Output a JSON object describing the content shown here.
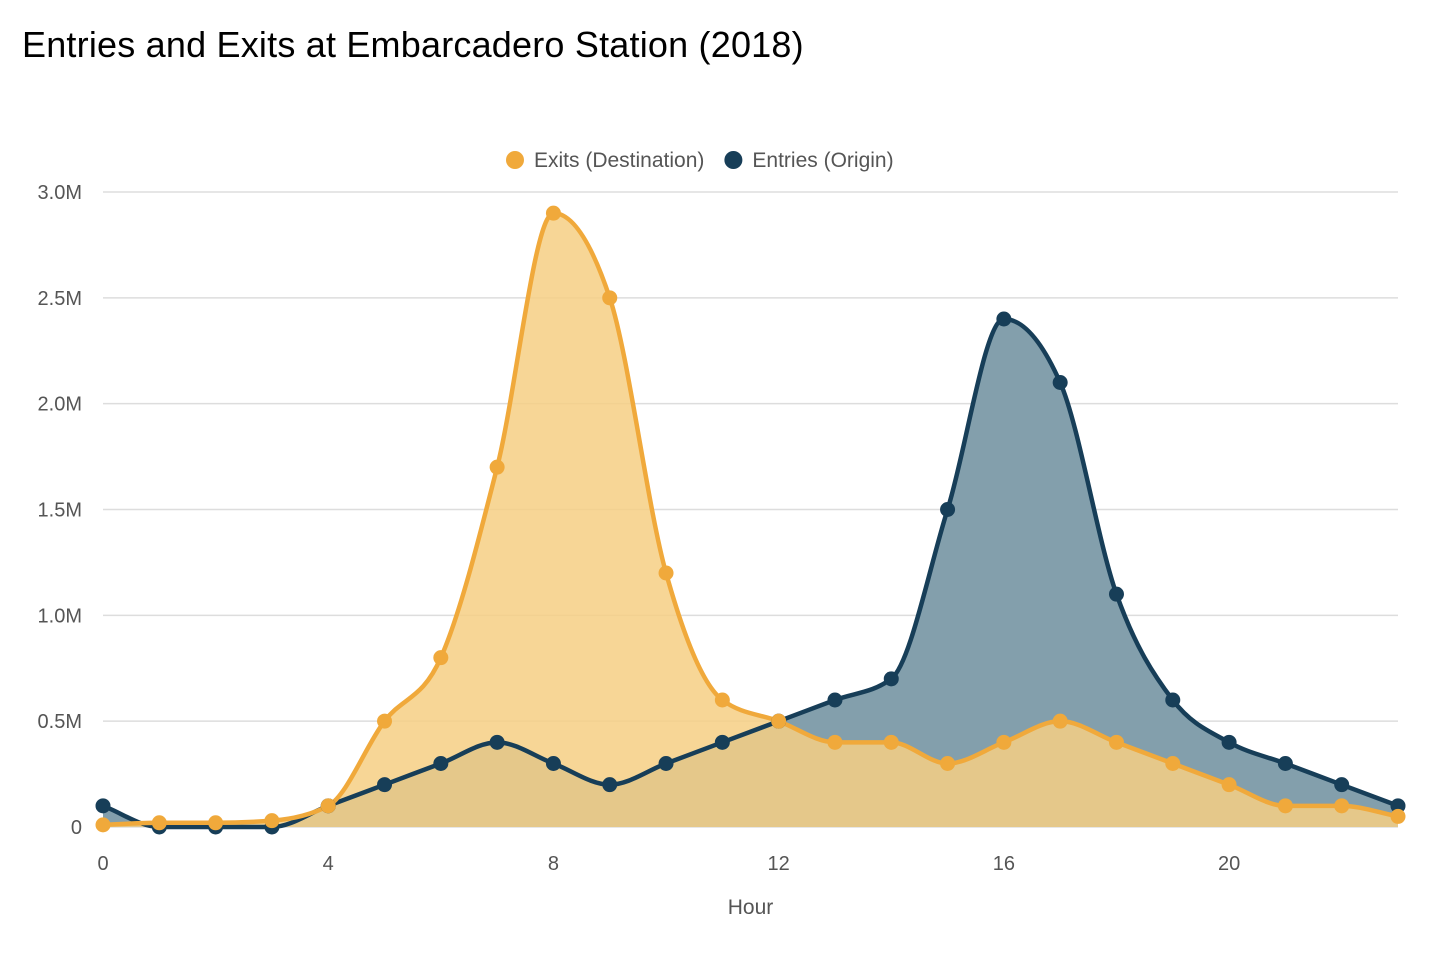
{
  "chart_data": {
    "type": "area",
    "title": "Entries and Exits at Embarcadero Station (2018)",
    "xlabel": "Hour",
    "ylabel": "",
    "x": [
      0,
      1,
      2,
      3,
      4,
      5,
      6,
      7,
      8,
      9,
      10,
      11,
      12,
      13,
      14,
      15,
      16,
      17,
      18,
      19,
      20,
      21,
      22,
      23
    ],
    "xlim": [
      0,
      23
    ],
    "ylim": [
      0,
      3000000
    ],
    "x_ticks": [
      0,
      4,
      8,
      12,
      16,
      20
    ],
    "x_tick_labels": [
      "0",
      "4",
      "8",
      "12",
      "16",
      "20"
    ],
    "y_ticks": [
      0,
      500000,
      1000000,
      1500000,
      2000000,
      2500000,
      3000000
    ],
    "y_tick_labels": [
      "0",
      "0.5M",
      "1.0M",
      "1.5M",
      "2.0M",
      "2.5M",
      "3.0M"
    ],
    "grid": true,
    "legend": "top-center",
    "series": [
      {
        "name": "Exits (Destination)",
        "color": "#f0a93b",
        "fill": "#f6cf85",
        "values": [
          10000,
          20000,
          20000,
          30000,
          100000,
          500000,
          800000,
          1700000,
          2900000,
          2500000,
          1200000,
          600000,
          500000,
          400000,
          400000,
          300000,
          400000,
          500000,
          400000,
          300000,
          200000,
          100000,
          100000,
          50000
        ]
      },
      {
        "name": "Entries (Origin)",
        "color": "#173e58",
        "fill": "#839fac",
        "values": [
          100000,
          0,
          0,
          0,
          100000,
          200000,
          300000,
          400000,
          300000,
          200000,
          300000,
          400000,
          500000,
          600000,
          700000,
          1500000,
          2400000,
          2100000,
          1100000,
          600000,
          400000,
          300000,
          200000,
          100000
        ]
      }
    ]
  }
}
